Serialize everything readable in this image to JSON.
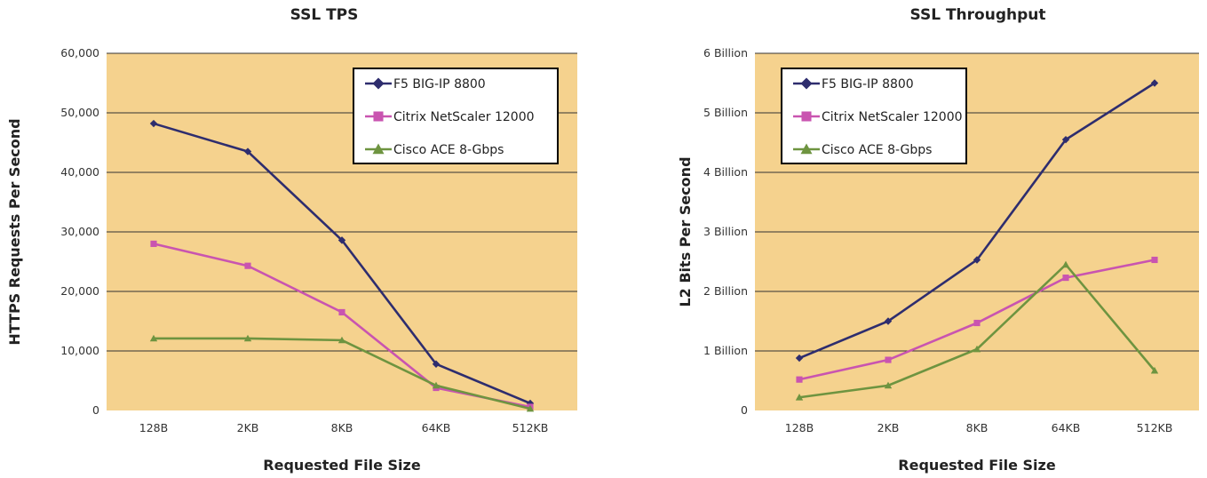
{
  "colors": {
    "plot_background": "#F5D28E",
    "gridline": "#333333",
    "f5": "#2E2D6E",
    "citrix": "#C954B0",
    "cisco": "#6E9440"
  },
  "chart_data": [
    {
      "type": "line",
      "title": "SSL TPS",
      "xlabel": "Requested File Size",
      "ylabel": "HTTPS Requests Per Second",
      "categories": [
        "128B",
        "2KB",
        "8KB",
        "64KB",
        "512KB"
      ],
      "ylim": [
        0,
        60000
      ],
      "yticks": [
        0,
        10000,
        20000,
        30000,
        40000,
        50000,
        60000
      ],
      "ytick_labels": [
        "0",
        "10,000",
        "20,000",
        "30,000",
        "40,000",
        "50,000",
        "60,000"
      ],
      "grid": true,
      "legend_position": "top-right",
      "series": [
        {
          "name": "F5 BIG-IP 8800",
          "marker": "diamond-icon",
          "color": "#2E2D6E",
          "values": [
            48200,
            43500,
            28600,
            7800,
            1200
          ]
        },
        {
          "name": "Citrix NetScaler 12000",
          "marker": "square-icon",
          "color": "#C954B0",
          "values": [
            28000,
            24300,
            16500,
            3800,
            600
          ]
        },
        {
          "name": "Cisco ACE 8-Gbps",
          "marker": "triangle-icon",
          "color": "#6E9440",
          "values": [
            12100,
            12100,
            11800,
            4200,
            300
          ]
        }
      ]
    },
    {
      "type": "line",
      "title": "SSL Throughput",
      "xlabel": "Requested File Size",
      "ylabel": "L2 Bits Per Second",
      "categories": [
        "128B",
        "2KB",
        "8KB",
        "64KB",
        "512KB"
      ],
      "ylim": [
        0,
        6000000000
      ],
      "yticks": [
        0,
        1000000000,
        2000000000,
        3000000000,
        4000000000,
        5000000000,
        6000000000
      ],
      "ytick_labels": [
        "0",
        "1  Billion",
        "2 Billion",
        "3 Billion",
        "4 Billion",
        "5 Billion",
        "6 Billion"
      ],
      "grid": true,
      "legend_position": "top-left",
      "series": [
        {
          "name": "F5 BIG-IP 8800",
          "marker": "diamond-icon",
          "color": "#2E2D6E",
          "values": [
            880000000,
            1500000000,
            2530000000,
            4550000000,
            5500000000
          ]
        },
        {
          "name": "Citrix NetScaler 12000",
          "marker": "square-icon",
          "color": "#C954B0",
          "values": [
            520000000,
            850000000,
            1470000000,
            2230000000,
            2530000000
          ]
        },
        {
          "name": "Cisco ACE 8-Gbps",
          "marker": "triangle-icon",
          "color": "#6E9440",
          "values": [
            220000000,
            420000000,
            1030000000,
            2450000000,
            670000000
          ]
        }
      ]
    }
  ]
}
